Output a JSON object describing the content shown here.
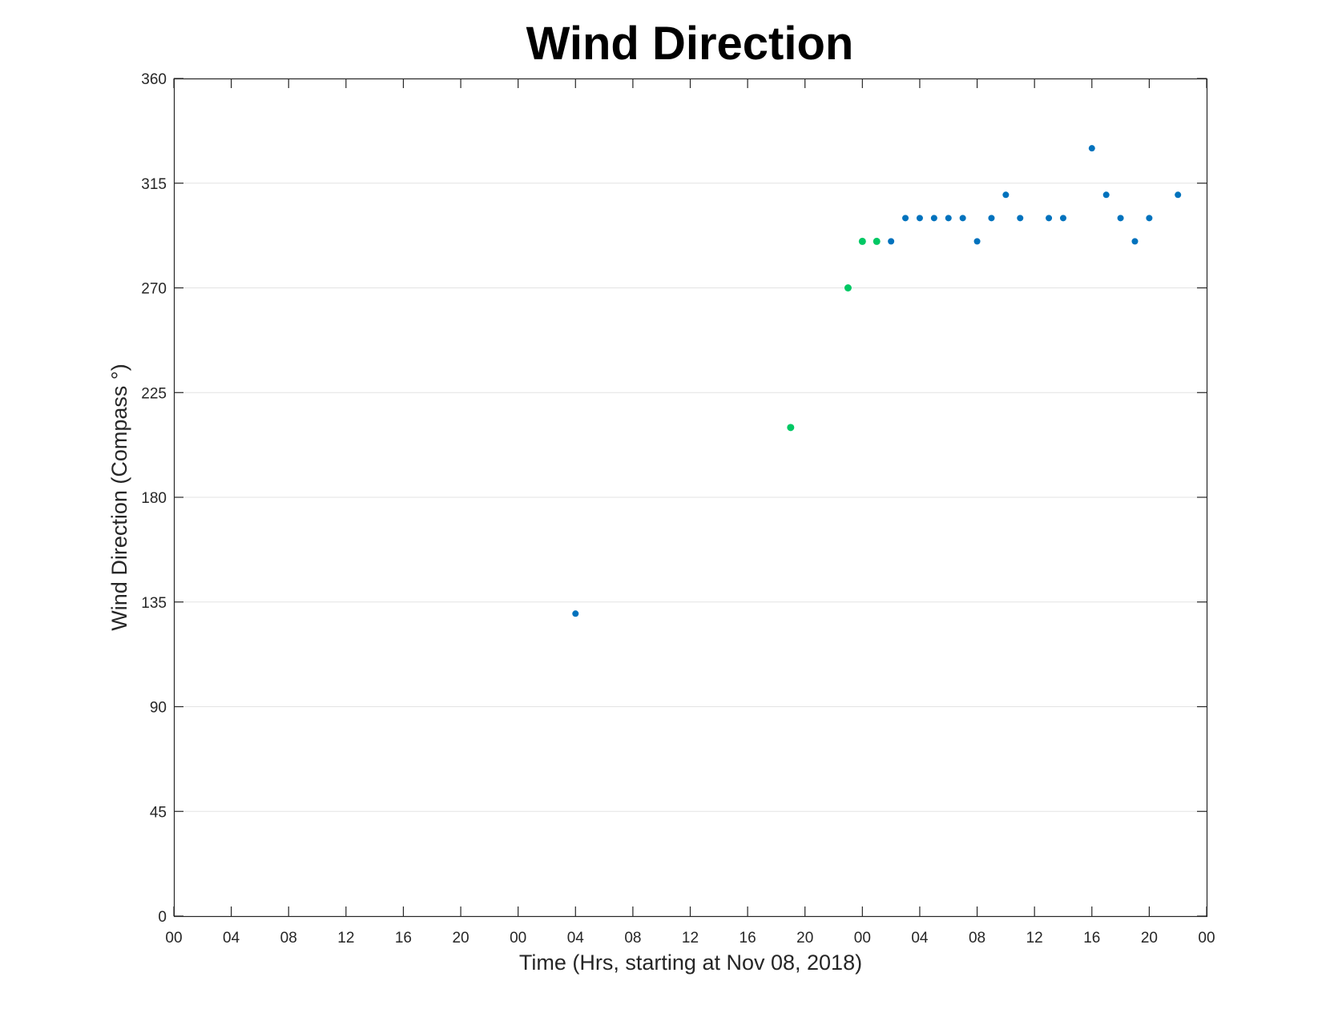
{
  "chart_data": {
    "type": "scatter",
    "title": "Wind Direction",
    "xlabel": "Time (Hrs, starting at Nov 08, 2018)",
    "ylabel": "Wind Direction (Compass °)",
    "x_unit": "hours",
    "xlim": [
      0,
      72
    ],
    "ylim": [
      0,
      360
    ],
    "x_tick_values": [
      0,
      4,
      8,
      12,
      16,
      20,
      24,
      28,
      32,
      36,
      40,
      44,
      48,
      52,
      56,
      60,
      64,
      68,
      72
    ],
    "x_tick_labels": [
      "00",
      "04",
      "08",
      "12",
      "16",
      "20",
      "00",
      "04",
      "08",
      "12",
      "16",
      "20",
      "00",
      "04",
      "08",
      "12",
      "16",
      "20",
      "00"
    ],
    "y_ticks": [
      0,
      45,
      90,
      135,
      180,
      225,
      270,
      315,
      360
    ],
    "grid": "horizontal",
    "legend": "none",
    "series": [
      {
        "color": "#0072BD",
        "points": [
          {
            "x": 28,
            "y": 130
          },
          {
            "x": 50,
            "y": 290
          },
          {
            "x": 51,
            "y": 300
          },
          {
            "x": 52,
            "y": 300
          },
          {
            "x": 53,
            "y": 300
          },
          {
            "x": 54,
            "y": 300
          },
          {
            "x": 55,
            "y": 300
          },
          {
            "x": 56,
            "y": 290
          },
          {
            "x": 57,
            "y": 300
          },
          {
            "x": 58,
            "y": 310
          },
          {
            "x": 59,
            "y": 300
          },
          {
            "x": 61,
            "y": 300
          },
          {
            "x": 62,
            "y": 300
          },
          {
            "x": 64,
            "y": 330
          },
          {
            "x": 65,
            "y": 310
          },
          {
            "x": 66,
            "y": 300
          },
          {
            "x": 67,
            "y": 290
          },
          {
            "x": 68,
            "y": 300
          },
          {
            "x": 70,
            "y": 310
          }
        ]
      },
      {
        "color": "#00C864",
        "points": [
          {
            "x": 43,
            "y": 210
          },
          {
            "x": 47,
            "y": 270
          },
          {
            "x": 48,
            "y": 290
          },
          {
            "x": 49,
            "y": 290
          }
        ]
      }
    ]
  }
}
